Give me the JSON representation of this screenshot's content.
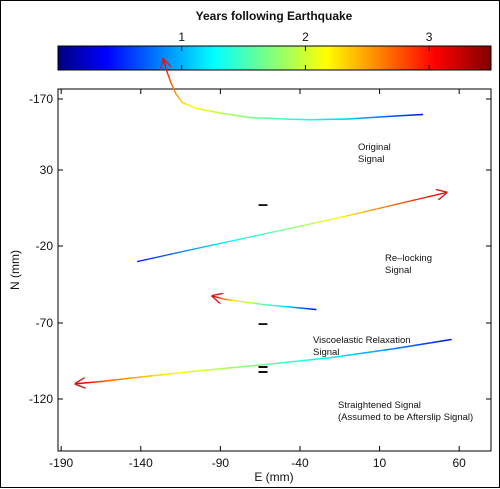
{
  "chart_data": {
    "type": "line",
    "colorbar": {
      "title": "Years following Earthquake",
      "ticks": [
        1,
        2,
        3
      ],
      "range": [
        0,
        3.5
      ],
      "colormap": "jet"
    },
    "xlabel": "E (mm)",
    "ylabel": "N (mm)",
    "xlim": [
      -192,
      80
    ],
    "xticks": [
      -190,
      -140,
      -90,
      -40,
      10,
      60
    ],
    "yticks": [
      -170,
      30,
      -20,
      -70,
      -120
    ],
    "operators": [
      "–",
      "–",
      "="
    ],
    "series": [
      {
        "name": "Original Signal",
        "label_lines": [
          "Original",
          "Signal"
        ],
        "points": [
          [
            37,
            43
          ],
          [
            20,
            42
          ],
          [
            5,
            41
          ],
          [
            -10,
            40
          ],
          [
            -34,
            39.5
          ],
          [
            -50,
            40
          ],
          [
            -72,
            41
          ],
          [
            -90,
            44
          ],
          [
            -105,
            47
          ],
          [
            -114,
            51
          ],
          [
            -118,
            57
          ],
          [
            -121,
            64
          ],
          [
            -124,
            73
          ],
          [
            -126,
            80
          ]
        ]
      },
      {
        "name": "Re-locking Signal",
        "label_lines": [
          "Re–locking",
          "Signal"
        ],
        "points": [
          [
            -142,
            -55
          ],
          [
            -110,
            -47.5
          ],
          [
            -75,
            -39.5
          ],
          [
            -40,
            -31.5
          ],
          [
            -10,
            -24.5
          ],
          [
            20,
            -17
          ],
          [
            52,
            -9
          ]
        ]
      },
      {
        "name": "Viscoelastic Relaxation Signal",
        "label_lines": [
          "Viscoelastic Relaxation",
          "Signal"
        ],
        "points": [
          [
            -30,
            -87
          ],
          [
            -45,
            -85.5
          ],
          [
            -62,
            -83.8
          ],
          [
            -78,
            -81.6
          ],
          [
            -88,
            -80
          ],
          [
            -95,
            -78
          ]
        ]
      },
      {
        "name": "Straightened Signal",
        "label_lines": [
          "Straightened Signal",
          "(Assumed to be Afterslip Signal)"
        ],
        "points": [
          [
            55,
            -107
          ],
          [
            20,
            -113
          ],
          [
            -20,
            -119
          ],
          [
            -60,
            -123.5
          ],
          [
            -100,
            -127.5
          ],
          [
            -140,
            -132
          ],
          [
            -165,
            -135
          ],
          [
            -181,
            -136.5
          ]
        ]
      }
    ]
  }
}
